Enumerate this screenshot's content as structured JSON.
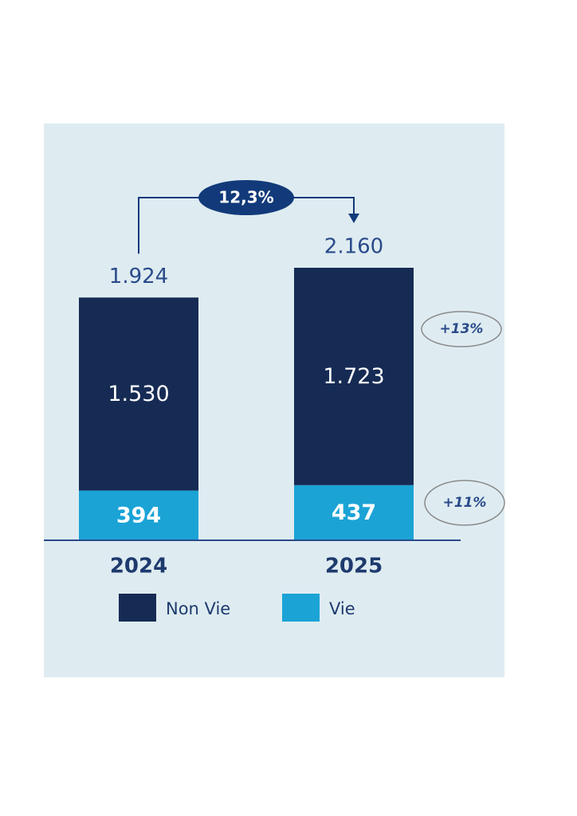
{
  "chart_data": {
    "type": "stacked_bar",
    "categories": [
      "2024",
      "2025"
    ],
    "series": [
      {
        "name": "Non Vie",
        "color": "#162b54",
        "values": [
          1530,
          1723
        ],
        "value_labels": [
          "1.530",
          "1.723"
        ],
        "growth": "+13%"
      },
      {
        "name": "Vie",
        "color": "#1ba3d6",
        "values": [
          394,
          437
        ],
        "growth": "+11%"
      }
    ],
    "totals": {
      "values": [
        1924,
        2160
      ],
      "value_labels": [
        "1.924",
        "2.160"
      ]
    },
    "total_growth": "12,3%"
  }
}
